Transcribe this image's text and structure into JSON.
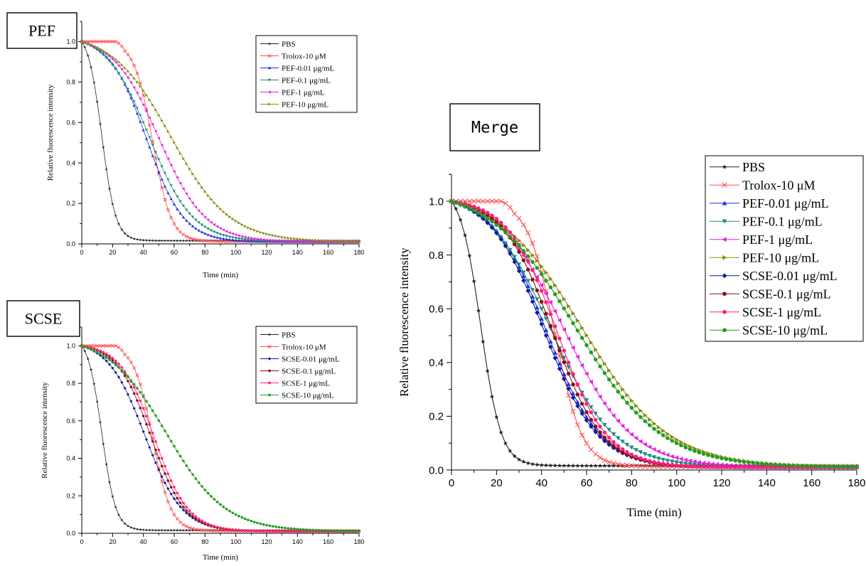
{
  "chart_data": [
    {
      "type": "line",
      "panel_label": "PEF",
      "xlabel": "Time (min)",
      "ylabel": "Relative fluorescence intensity",
      "xlim": [
        0,
        180
      ],
      "ylim": [
        0,
        1.1
      ],
      "xticks": [
        0,
        20,
        40,
        60,
        80,
        100,
        120,
        140,
        160,
        180
      ],
      "yticks": [
        0.0,
        0.2,
        0.4,
        0.6,
        0.8,
        1.0
      ],
      "legend_position": "top-right",
      "grid": false,
      "series": [
        {
          "name": "PBS",
          "color": "#222222",
          "marker": "star",
          "curve": {
            "kind": "sigmoid",
            "top": 1.0,
            "bottom": 0.015,
            "midpoint": 13,
            "width": 4.5
          }
        },
        {
          "name": "Trolox-10 μM",
          "color": "#ff4a4a",
          "marker": "x",
          "curve": {
            "kind": "lag",
            "lag": 22,
            "top": 1.0,
            "bottom": 0.012,
            "midpoint": 46,
            "width": 6
          }
        },
        {
          "name": "PEF-0.01 μg/mL",
          "color": "#1f2fe0",
          "marker": "triangle-up",
          "curve": {
            "kind": "sigmoid",
            "top": 1.0,
            "bottom": 0.01,
            "midpoint": 42,
            "width": 12
          }
        },
        {
          "name": "PEF-0.1 μg/mL",
          "color": "#1a8c7e",
          "marker": "triangle-down",
          "curve": {
            "kind": "sigmoid",
            "top": 1.0,
            "bottom": 0.01,
            "midpoint": 44,
            "width": 14
          }
        },
        {
          "name": "PEF-1 μg/mL",
          "color": "#e81ee0",
          "marker": "triangle-left",
          "curve": {
            "kind": "sigmoid",
            "top": 1.0,
            "bottom": 0.01,
            "midpoint": 50,
            "width": 15
          }
        },
        {
          "name": "PEF-10 μg/mL",
          "color": "#8c8c10",
          "marker": "triangle-right",
          "curve": {
            "kind": "sigmoid",
            "top": 1.0,
            "bottom": 0.01,
            "midpoint": 58,
            "width": 19
          }
        }
      ]
    },
    {
      "type": "line",
      "panel_label": "SCSE",
      "xlabel": "Time (min)",
      "ylabel": "Relative fluorescence intensity",
      "xlim": [
        0,
        180
      ],
      "ylim": [
        0,
        1.1
      ],
      "xticks": [
        0,
        20,
        40,
        60,
        80,
        100,
        120,
        140,
        160,
        180
      ],
      "yticks": [
        0.0,
        0.2,
        0.4,
        0.6,
        0.8,
        1.0
      ],
      "legend_position": "top-right",
      "grid": false,
      "series": [
        {
          "name": "PBS",
          "color": "#222222",
          "marker": "star",
          "curve": {
            "kind": "sigmoid",
            "top": 1.0,
            "bottom": 0.015,
            "midpoint": 13,
            "width": 4.5
          }
        },
        {
          "name": "Trolox-10  μM",
          "color": "#ff4a4a",
          "marker": "x",
          "curve": {
            "kind": "lag",
            "lag": 22,
            "top": 1.0,
            "bottom": 0.012,
            "midpoint": 46,
            "width": 6
          }
        },
        {
          "name": "SCSE-0.01 μg/mL",
          "color": "#0a1a9e",
          "marker": "diamond",
          "curve": {
            "kind": "sigmoid",
            "top": 1.0,
            "bottom": 0.01,
            "midpoint": 41,
            "width": 12
          }
        },
        {
          "name": "SCSE-0.1 μg/mL",
          "color": "#8b0f0f",
          "marker": "circle",
          "curve": {
            "kind": "sigmoid",
            "top": 1.0,
            "bottom": 0.01,
            "midpoint": 45,
            "width": 11
          }
        },
        {
          "name": "SCSE-1 μg/mL",
          "color": "#ff1f7a",
          "marker": "circle",
          "curve": {
            "kind": "sigmoid",
            "top": 1.0,
            "bottom": 0.01,
            "midpoint": 47,
            "width": 11
          }
        },
        {
          "name": "SCSE-10  μg/mL",
          "color": "#1f9e1f",
          "marker": "circle",
          "curve": {
            "kind": "sigmoid",
            "top": 1.0,
            "bottom": 0.01,
            "midpoint": 55,
            "width": 19
          }
        }
      ]
    },
    {
      "type": "line",
      "panel_label": "Merge",
      "xlabel": "Time (min)",
      "ylabel": "Relative fluorescence intensity",
      "xlim": [
        0,
        180
      ],
      "ylim": [
        0,
        1.1
      ],
      "xticks": [
        0,
        20,
        40,
        60,
        80,
        100,
        120,
        140,
        160,
        180
      ],
      "yticks": [
        0.0,
        0.2,
        0.4,
        0.6,
        0.8,
        1.0
      ],
      "legend_position": "top-right",
      "grid": false,
      "series": [
        {
          "name": "PBS",
          "color": "#222222",
          "marker": "star",
          "curve": {
            "kind": "sigmoid",
            "top": 1.0,
            "bottom": 0.015,
            "midpoint": 13,
            "width": 4.5
          }
        },
        {
          "name": "Trolox-10 μM",
          "color": "#ff4a4a",
          "marker": "x",
          "curve": {
            "kind": "lag",
            "lag": 22,
            "top": 1.0,
            "bottom": 0.012,
            "midpoint": 46,
            "width": 6
          }
        },
        {
          "name": "PEF-0.01 μg/mL",
          "color": "#1f2fe0",
          "marker": "triangle-up",
          "curve": {
            "kind": "sigmoid",
            "top": 1.0,
            "bottom": 0.01,
            "midpoint": 42,
            "width": 12
          }
        },
        {
          "name": "PEF-0.1 μg/mL",
          "color": "#1a8c7e",
          "marker": "triangle-down",
          "curve": {
            "kind": "sigmoid",
            "top": 1.0,
            "bottom": 0.01,
            "midpoint": 44,
            "width": 14
          }
        },
        {
          "name": "PEF-1 μg/mL",
          "color": "#e81ee0",
          "marker": "triangle-left",
          "curve": {
            "kind": "sigmoid",
            "top": 1.0,
            "bottom": 0.01,
            "midpoint": 50,
            "width": 15
          }
        },
        {
          "name": "PEF-10 μg/mL",
          "color": "#8c8c10",
          "marker": "triangle-right",
          "curve": {
            "kind": "sigmoid",
            "top": 1.0,
            "bottom": 0.01,
            "midpoint": 58,
            "width": 19
          }
        },
        {
          "name": "SCSE-0.01 μg/mL",
          "color": "#0a1a9e",
          "marker": "diamond",
          "curve": {
            "kind": "sigmoid",
            "top": 1.0,
            "bottom": 0.01,
            "midpoint": 41,
            "width": 12
          }
        },
        {
          "name": "SCSE-0.1 μg/mL",
          "color": "#8b0f0f",
          "marker": "circle",
          "curve": {
            "kind": "sigmoid",
            "top": 1.0,
            "bottom": 0.01,
            "midpoint": 45,
            "width": 11
          }
        },
        {
          "name": "SCSE-1 μg/mL",
          "color": "#ff1f7a",
          "marker": "circle",
          "curve": {
            "kind": "sigmoid",
            "top": 1.0,
            "bottom": 0.01,
            "midpoint": 47,
            "width": 11
          }
        },
        {
          "name": "SCSE-10 μg/mL",
          "color": "#1f9e1f",
          "marker": "circle",
          "curve": {
            "kind": "sigmoid",
            "top": 1.0,
            "bottom": 0.01,
            "midpoint": 55,
            "width": 19
          }
        }
      ]
    }
  ]
}
